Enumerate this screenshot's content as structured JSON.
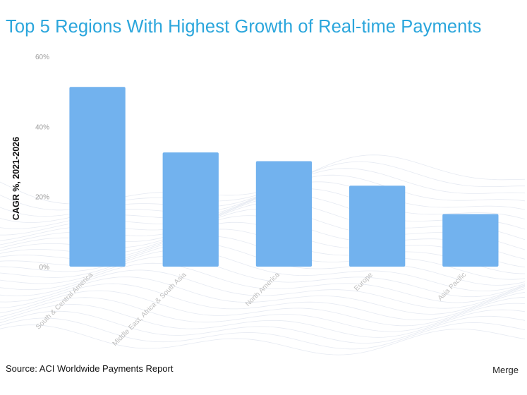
{
  "chart_data": {
    "type": "bar",
    "title": "Top 5 Regions With Highest Growth of Real-time Payments",
    "ylabel": "CAGR %, 2021-2026",
    "xlabel": "",
    "categories": [
      "South & Central America",
      "Middle East, Africa & South Asia",
      "North America",
      "Europe",
      "Asia Pacific"
    ],
    "values": [
      51.3,
      32.6,
      30.1,
      23.1,
      15.0
    ],
    "ylim": [
      0,
      60
    ],
    "yticks": [
      0,
      20,
      40,
      60
    ],
    "ytick_labels": [
      "0%",
      "20%",
      "40%",
      "60%"
    ],
    "grid": false,
    "legend": "none",
    "bar_color": "#72b2ee"
  },
  "footer": {
    "source": "Source: ACI Worldwide Payments Report",
    "brand": "Merge"
  },
  "colors": {
    "title": "#2ba6dc",
    "bars": "#72b2ee"
  }
}
